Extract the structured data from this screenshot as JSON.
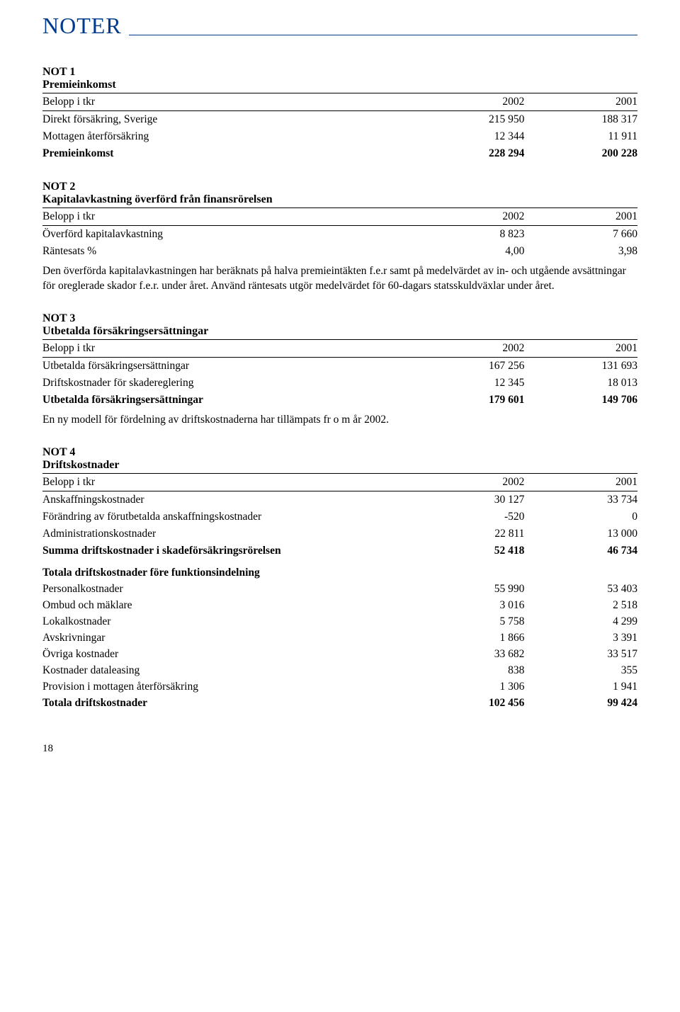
{
  "page": {
    "title": "NOTER",
    "number": "18"
  },
  "common": {
    "header_label": "Belopp i tkr",
    "year_a": "2002",
    "year_b": "2001"
  },
  "not1": {
    "label": "NOT 1",
    "subtitle": "Premieinkomst",
    "rows": [
      {
        "label": "Direkt försäkring, Sverige",
        "a": "215 950",
        "b": "188 317",
        "bold": false
      },
      {
        "label": "Mottagen återförsäkring",
        "a": "12 344",
        "b": "11 911",
        "bold": false
      },
      {
        "label": "Premieinkomst",
        "a": "228 294",
        "b": "200 228",
        "bold": true
      }
    ]
  },
  "not2": {
    "label": "NOT 2",
    "subtitle": "Kapitalavkastning överförd från finansrörelsen",
    "rows": [
      {
        "label": "Överförd kapitalavkastning",
        "a": "8 823",
        "b": "7 660",
        "bold": false
      },
      {
        "label": "Räntesats %",
        "a": "4,00",
        "b": "3,98",
        "bold": false
      }
    ],
    "body": "Den överförda kapitalavkastningen har beräknats på halva premieintäkten f.e.r samt på medelvärdet av in- och utgående avsättningar för oreglerade skador f.e.r. under året. Använd räntesats utgör medelvärdet för 60-dagars statsskuldväxlar under året."
  },
  "not3": {
    "label": "NOT 3",
    "subtitle": "Utbetalda försäkringsersättningar",
    "rows": [
      {
        "label": "Utbetalda försäkringsersättningar",
        "a": "167 256",
        "b": "131 693",
        "bold": false
      },
      {
        "label": "Driftskostnader för skadereglering",
        "a": "12 345",
        "b": "18 013",
        "bold": false
      },
      {
        "label": "Utbetalda försäkringsersättningar",
        "a": "179 601",
        "b": "149 706",
        "bold": true
      }
    ],
    "body": "En ny modell för fördelning av driftskostnaderna har tillämpats fr o m år 2002."
  },
  "not4": {
    "label": "NOT 4",
    "subtitle": "Driftskostnader",
    "group_a": [
      {
        "label": "Anskaffningskostnader",
        "a": "30 127",
        "b": "33 734",
        "bold": false
      },
      {
        "label": "Förändring av förutbetalda anskaffningskostnader",
        "a": "-520",
        "b": "0",
        "bold": false
      },
      {
        "label": "Administrationskostnader",
        "a": "22 811",
        "b": "13 000",
        "bold": false
      },
      {
        "label": "Summa driftskostnader i skadeförsäkringsrörelsen",
        "a": "52 418",
        "b": "46 734",
        "bold": true
      }
    ],
    "section_b_heading": "Totala driftskostnader före funktionsindelning",
    "group_b": [
      {
        "label": "Personalkostnader",
        "a": "55 990",
        "b": "53 403",
        "bold": false
      },
      {
        "label": "Ombud och mäklare",
        "a": "3 016",
        "b": "2 518",
        "bold": false
      },
      {
        "label": "Lokalkostnader",
        "a": "5 758",
        "b": "4 299",
        "bold": false
      },
      {
        "label": "Avskrivningar",
        "a": "1 866",
        "b": "3 391",
        "bold": false
      },
      {
        "label": "Övriga kostnader",
        "a": "33 682",
        "b": "33 517",
        "bold": false
      },
      {
        "label": "Kostnader dataleasing",
        "a": "838",
        "b": "355",
        "bold": false
      },
      {
        "label": "Provision i mottagen återförsäkring",
        "a": "1 306",
        "b": "1 941",
        "bold": false
      },
      {
        "label": "Totala driftskostnader",
        "a": "102 456",
        "b": "99 424",
        "bold": true
      }
    ]
  }
}
